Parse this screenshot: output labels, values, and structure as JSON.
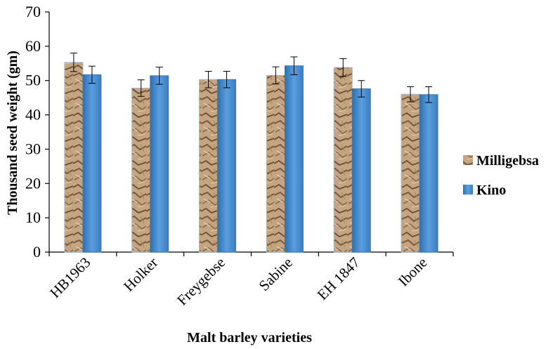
{
  "chart_data": {
    "type": "bar",
    "xlabel": "Malt barley varieties",
    "ylabel": "Thousand seed weight (gm)",
    "ylim": [
      0,
      70
    ],
    "yticks": [
      "0",
      "10",
      "20",
      "30",
      "40",
      "50",
      "60",
      "70"
    ],
    "grid": false,
    "legend_position": "right",
    "categories": [
      "HB1963",
      "Holker",
      "Freygebse",
      "Sabine",
      "EH 1847",
      "Ibone"
    ],
    "series": [
      {
        "name": "Milligebsa",
        "values": [
          55.3,
          47.8,
          50.3,
          51.5,
          53.8,
          46.0
        ],
        "errors": [
          2.7,
          2.4,
          2.4,
          2.5,
          2.6,
          2.2
        ],
        "color": "#b89a78"
      },
      {
        "name": "Kino",
        "values": [
          51.7,
          51.4,
          50.3,
          54.3,
          47.6,
          45.9
        ],
        "errors": [
          2.5,
          2.5,
          2.4,
          2.6,
          2.4,
          2.3
        ],
        "color": "#4a8fcf"
      }
    ]
  }
}
